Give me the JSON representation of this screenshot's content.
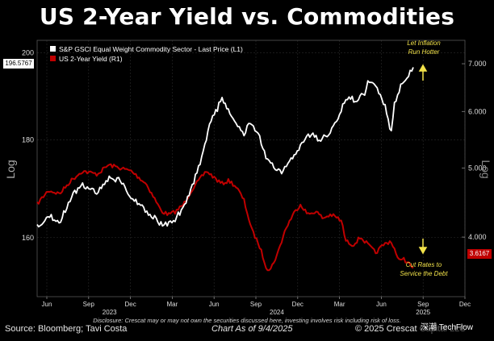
{
  "header": {
    "title": "US 2-Year Yield vs. Commodities"
  },
  "chart_data": {
    "type": "line",
    "title": "US 2-Year Yield vs. Commodities",
    "ylabel_left": "Log",
    "ylabel_right": "Log",
    "y_left_ticks": [
      "200",
      "180",
      "160"
    ],
    "y_left_range": [
      149,
      203
    ],
    "y_right_ticks": [
      "7.000",
      "6.000",
      "5.000",
      "4.000"
    ],
    "y_right_range": [
      3.3,
      7.55
    ],
    "x_labels": [
      "Jun",
      "Sep",
      "Dec",
      "Mar",
      "Jun",
      "Sep",
      "Dec",
      "Mar",
      "Jun",
      "Sep",
      "Dec"
    ],
    "year_labels": [
      "2023",
      "2024",
      "2025"
    ],
    "grid": true,
    "legend_position": "top-left",
    "series": [
      {
        "name": "S&P GSCI Equal Weight Commodity Sector - Last Price (L1)",
        "axis": "left",
        "color": "#ffffff",
        "last_value_label": "196.5767",
        "anchors": [
          [
            0,
            162
          ],
          [
            0.03,
            164.5
          ],
          [
            0.06,
            163
          ],
          [
            0.09,
            168
          ],
          [
            0.12,
            170.5
          ],
          [
            0.16,
            169
          ],
          [
            0.19,
            172
          ],
          [
            0.22,
            171.5
          ],
          [
            0.25,
            168
          ],
          [
            0.28,
            166
          ],
          [
            0.31,
            164
          ],
          [
            0.33,
            162.5
          ],
          [
            0.36,
            163
          ],
          [
            0.38,
            165
          ],
          [
            0.4,
            168
          ],
          [
            0.42,
            172
          ],
          [
            0.44,
            177
          ],
          [
            0.46,
            184
          ],
          [
            0.48,
            187
          ],
          [
            0.49,
            189.5
          ],
          [
            0.51,
            186
          ],
          [
            0.53,
            183
          ],
          [
            0.55,
            181.5
          ],
          [
            0.57,
            184
          ],
          [
            0.59,
            181
          ],
          [
            0.61,
            176
          ],
          [
            0.63,
            174
          ],
          [
            0.65,
            173
          ],
          [
            0.67,
            175
          ],
          [
            0.69,
            177.5
          ],
          [
            0.71,
            180
          ],
          [
            0.73,
            181.5
          ],
          [
            0.75,
            180
          ],
          [
            0.77,
            181
          ],
          [
            0.79,
            183
          ],
          [
            0.81,
            187
          ],
          [
            0.83,
            190
          ],
          [
            0.85,
            188
          ],
          [
            0.86,
            191
          ],
          [
            0.87,
            189.5
          ],
          [
            0.88,
            193.5
          ],
          [
            0.9,
            192
          ],
          [
            0.92,
            188.5
          ],
          [
            0.93,
            186
          ],
          [
            0.94,
            181
          ],
          [
            0.95,
            188.5
          ],
          [
            0.96,
            190
          ],
          [
            0.97,
            193
          ],
          [
            0.98,
            194
          ],
          [
            0.99,
            195
          ],
          [
            1.0,
            196.5
          ]
        ]
      },
      {
        "name": "US 2-Year Yield (R1)",
        "axis": "right",
        "color": "#c00000",
        "last_value_label": "3.6167",
        "anchors": [
          [
            0,
            4.45
          ],
          [
            0.03,
            4.65
          ],
          [
            0.06,
            4.6
          ],
          [
            0.09,
            4.8
          ],
          [
            0.12,
            4.95
          ],
          [
            0.16,
            4.9
          ],
          [
            0.19,
            5.05
          ],
          [
            0.22,
            5.0
          ],
          [
            0.25,
            4.95
          ],
          [
            0.27,
            4.85
          ],
          [
            0.29,
            4.75
          ],
          [
            0.31,
            4.55
          ],
          [
            0.33,
            4.35
          ],
          [
            0.35,
            4.3
          ],
          [
            0.37,
            4.35
          ],
          [
            0.39,
            4.45
          ],
          [
            0.41,
            4.65
          ],
          [
            0.43,
            4.8
          ],
          [
            0.45,
            4.95
          ],
          [
            0.47,
            4.85
          ],
          [
            0.49,
            4.75
          ],
          [
            0.51,
            4.8
          ],
          [
            0.53,
            4.7
          ],
          [
            0.55,
            4.5
          ],
          [
            0.57,
            4.1
          ],
          [
            0.59,
            3.9
          ],
          [
            0.61,
            3.62
          ],
          [
            0.62,
            3.6
          ],
          [
            0.64,
            3.8
          ],
          [
            0.66,
            4.1
          ],
          [
            0.68,
            4.3
          ],
          [
            0.7,
            4.45
          ],
          [
            0.72,
            4.3
          ],
          [
            0.74,
            4.35
          ],
          [
            0.76,
            4.25
          ],
          [
            0.78,
            4.3
          ],
          [
            0.8,
            4.25
          ],
          [
            0.81,
            4.2
          ],
          [
            0.82,
            3.95
          ],
          [
            0.84,
            3.9
          ],
          [
            0.86,
            4.0
          ],
          [
            0.88,
            3.9
          ],
          [
            0.9,
            3.8
          ],
          [
            0.92,
            3.9
          ],
          [
            0.94,
            3.95
          ],
          [
            0.95,
            3.85
          ],
          [
            0.96,
            3.7
          ],
          [
            0.97,
            3.75
          ],
          [
            0.98,
            3.7
          ],
          [
            1.0,
            3.62
          ]
        ]
      }
    ]
  },
  "annotations": {
    "top": [
      "Let Inflation",
      "Run Hotter"
    ],
    "bottom": [
      "Cut Rates to",
      "Service the Debt"
    ]
  },
  "footer": {
    "source": "Source: Bloomberg; Tavi Costa",
    "chart_as_of": "Chart As of 9/4/2025",
    "copyright": "© 2025 Crescat Capital LLC",
    "disclaimer": "Disclosure: Crescat may or may not own the securities discussed here, investing involves risk including risk of loss.",
    "watermark": "深潮 TechFlow"
  },
  "colors": {
    "background": "#000000",
    "commodity_line": "#ffffff",
    "yield_line": "#c00000",
    "annotation": "#f2e24a"
  }
}
